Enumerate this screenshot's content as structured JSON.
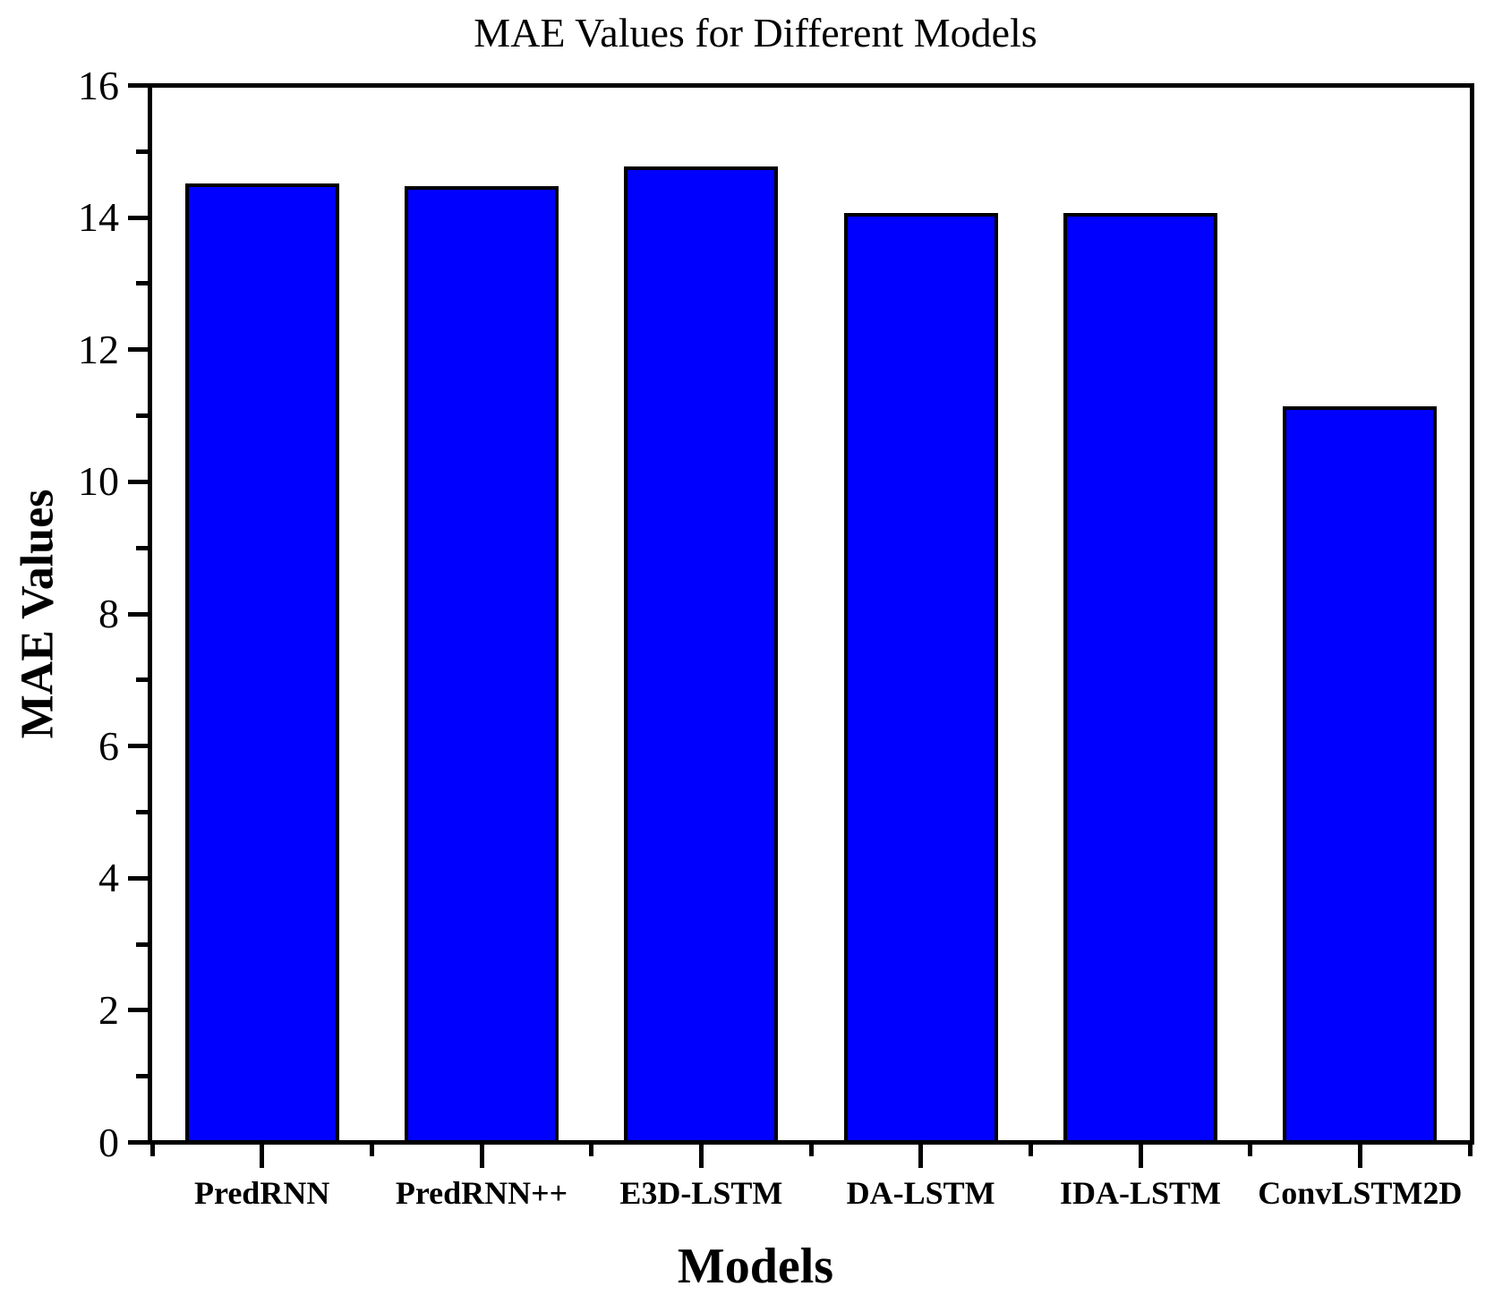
{
  "chart_data": {
    "type": "bar",
    "title": "MAE Values for Different Models",
    "xlabel": "Models",
    "ylabel": "MAE Values",
    "categories": [
      "PredRNN",
      "PredRNN++",
      "E3D-LSTM",
      "DA-LSTM",
      "IDA-LSTM",
      "ConvLSTM2D"
    ],
    "values": [
      14.55,
      14.5,
      14.8,
      14.1,
      14.1,
      11.15
    ],
    "ylim": [
      0,
      16
    ],
    "yticks": [
      0,
      2,
      4,
      6,
      8,
      10,
      12,
      14,
      16
    ],
    "ytick_labels": [
      "0",
      "2",
      "4",
      "6",
      "8",
      "10",
      "12",
      "14",
      "16"
    ],
    "minor_ytick_interval": 1,
    "grid": false,
    "legend": "none",
    "bar_color": "#0000FF",
    "bar_border_color": "#000000",
    "axis_color": "#000000",
    "background_color": "#FFFFFF"
  }
}
